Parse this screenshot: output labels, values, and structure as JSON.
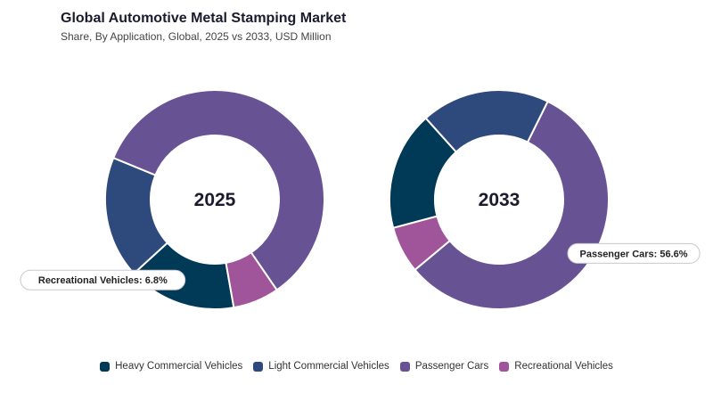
{
  "title": "Global Automotive Metal Stamping Market",
  "subtitle": "Share, By Application, Global, 2025 vs 2033, USD Million",
  "chart_data": [
    {
      "type": "pie",
      "variant": "donut",
      "center_label": "2025",
      "categories": [
        "Heavy Commercial Vehicles",
        "Light Commercial Vehicles",
        "Passenger Cars",
        "Recreational Vehicles"
      ],
      "values": [
        16.0,
        18.0,
        59.2,
        6.8
      ],
      "colors": [
        "#003a57",
        "#2e4a7d",
        "#675294",
        "#a0559a"
      ],
      "callout": {
        "category": "Recreational Vehicles",
        "label": "Recreational Vehicles: 6.8%"
      }
    },
    {
      "type": "pie",
      "variant": "donut",
      "center_label": "2033",
      "categories": [
        "Heavy Commercial Vehicles",
        "Light Commercial Vehicles",
        "Passenger Cars",
        "Recreational Vehicles"
      ],
      "values": [
        17.5,
        19.0,
        56.6,
        6.9
      ],
      "colors": [
        "#003a57",
        "#2e4a7d",
        "#675294",
        "#a0559a"
      ],
      "callout": {
        "category": "Passenger Cars",
        "label": "Passenger Cars: 56.6%"
      }
    }
  ],
  "legend": [
    {
      "label": "Heavy Commercial Vehicles",
      "color": "#003a57"
    },
    {
      "label": "Light Commercial Vehicles",
      "color": "#2e4a7d"
    },
    {
      "label": "Passenger Cars",
      "color": "#675294"
    },
    {
      "label": "Recreational Vehicles",
      "color": "#a0559a"
    }
  ]
}
